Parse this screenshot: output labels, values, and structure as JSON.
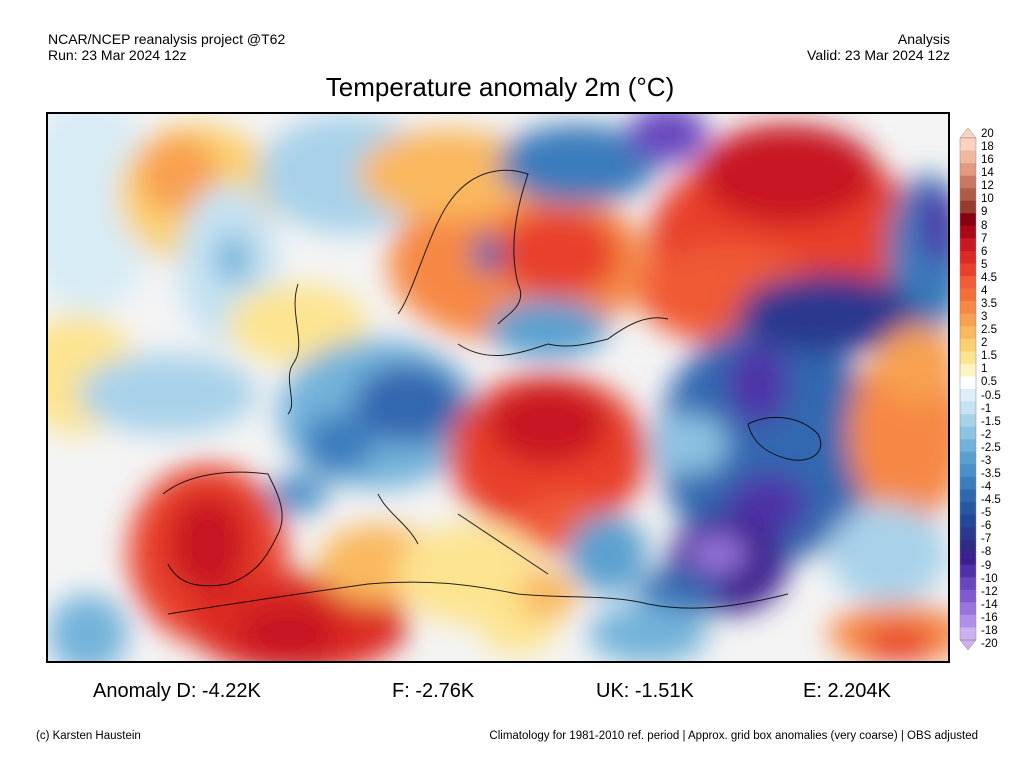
{
  "header": {
    "left_line1": "NCAR/NCEP reanalysis project @T62",
    "left_line2": "Run: 23 Mar 2024 12z",
    "right_line1": "Analysis",
    "right_line2": "Valid: 23 Mar 2024 12z"
  },
  "title": "Temperature anomaly 2m (°C)",
  "colorbar": {
    "labels": [
      "20",
      "18",
      "16",
      "14",
      "12",
      "10",
      "9",
      "8",
      "7",
      "6",
      "5",
      "4.5",
      "4",
      "3.5",
      "3",
      "2.5",
      "2",
      "1.5",
      "1",
      "0.5",
      "-0.5",
      "-1",
      "-1.5",
      "-2",
      "-2.5",
      "-3",
      "-3.5",
      "-4",
      "-4.5",
      "-5",
      "-6",
      "-7",
      "-8",
      "-9",
      "-10",
      "-12",
      "-14",
      "-16",
      "-18",
      "-20"
    ],
    "colors": [
      "#fbd3c0",
      "#f0b8a0",
      "#e09a80",
      "#c87860",
      "#b05a48",
      "#983c30",
      "#880010",
      "#a80818",
      "#c81820",
      "#dc2a24",
      "#e8402c",
      "#f05a34",
      "#f4703a",
      "#f68844",
      "#f8a050",
      "#fab85e",
      "#fcd070",
      "#fde490",
      "#fff4c0",
      "#ffffff",
      "#ddeef8",
      "#c4e2f2",
      "#a8d2ea",
      "#8cc2e2",
      "#72b2da",
      "#5aa0d0",
      "#4890c8",
      "#3a7cbc",
      "#3068b0",
      "#2858a4",
      "#24489a",
      "#2a3890",
      "#322a88",
      "#3c2090",
      "#5030a8",
      "#6846c0",
      "#7e5cd0",
      "#9874dc",
      "#b090e8",
      "#ccb0f2"
    ]
  },
  "anomalies": {
    "d": "Anomaly D: -4.22K",
    "f": "F: -2.76K",
    "uk": "UK: -1.51K",
    "e": "E: 2.204K"
  },
  "footer": {
    "left": "(c) Karsten Haustein",
    "right": "Climatology for 1981-2010 ref. period | Approx. grid box anomalies (very coarse) | OBS adjusted"
  }
}
